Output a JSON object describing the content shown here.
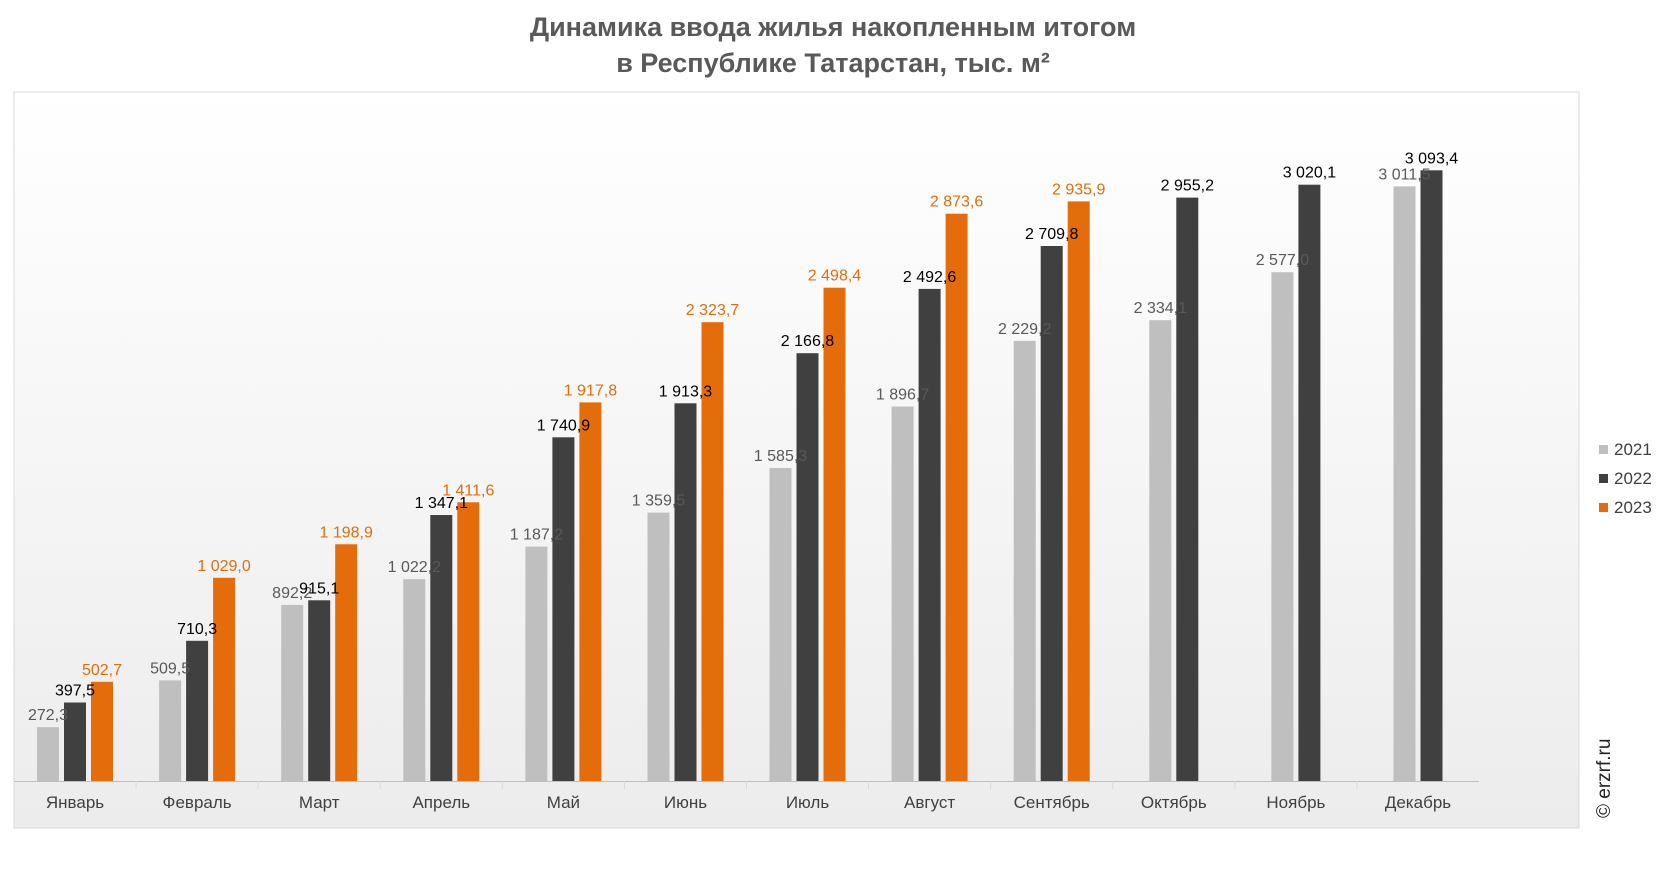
{
  "chart_data": {
    "type": "bar",
    "title_line1": "Динамика ввода жилья накопленным итогом",
    "title_line2": "в Республике Татарстан, тыс. м²",
    "categories": [
      "Январь",
      "Февраль",
      "Март",
      "Апрель",
      "Май",
      "Июнь",
      "Июль",
      "Август",
      "Сентябрь",
      "Октябрь",
      "Ноябрь",
      "Декабрь"
    ],
    "series": [
      {
        "name": "2021",
        "color": "#bfbfbf",
        "label_color": "#595959",
        "values": [
          272.3,
          509.5,
          892.2,
          1022.2,
          1187.2,
          1359.5,
          1585.3,
          1896.7,
          2229.2,
          2334.1,
          2577.0,
          3011.5
        ],
        "labels": [
          "272,3",
          "509,5",
          "892,2",
          "1 022,2",
          "1 187,2",
          "1 359,5",
          "1 585,3",
          "1 896,7",
          "2 229,2",
          "2 334,1",
          "2 577,0",
          "3 011,5"
        ]
      },
      {
        "name": "2022",
        "color": "#404040",
        "label_color": "#000000",
        "values": [
          397.5,
          710.3,
          915.1,
          1347.1,
          1740.9,
          1913.3,
          2166.8,
          2492.6,
          2709.8,
          2955.2,
          3020.1,
          3093.4
        ],
        "labels": [
          "397,5",
          "710,3",
          "915,1",
          "1 347,1",
          "1 740,9",
          "1 913,3",
          "2 166,8",
          "2 492,6",
          "2 709,8",
          "2 955,2",
          "3 020,1",
          "3 093,4"
        ]
      },
      {
        "name": "2023",
        "color": "#e46c0a",
        "label_color": "#e46c0a",
        "values": [
          502.7,
          1029.0,
          1198.9,
          1411.6,
          1917.8,
          2323.7,
          2498.4,
          2873.6,
          2935.9,
          null,
          null,
          null
        ],
        "labels": [
          "502,7",
          "1 029,0",
          "1 198,9",
          "1 411,6",
          "1 917,8",
          "2 323,7",
          "2 498,4",
          "2 873,6",
          "2 935,9",
          null,
          null,
          null
        ]
      }
    ],
    "ylim": [
      0,
      3500
    ],
    "grid": false,
    "legend_position": "right",
    "source": "© erzrf.ru"
  }
}
